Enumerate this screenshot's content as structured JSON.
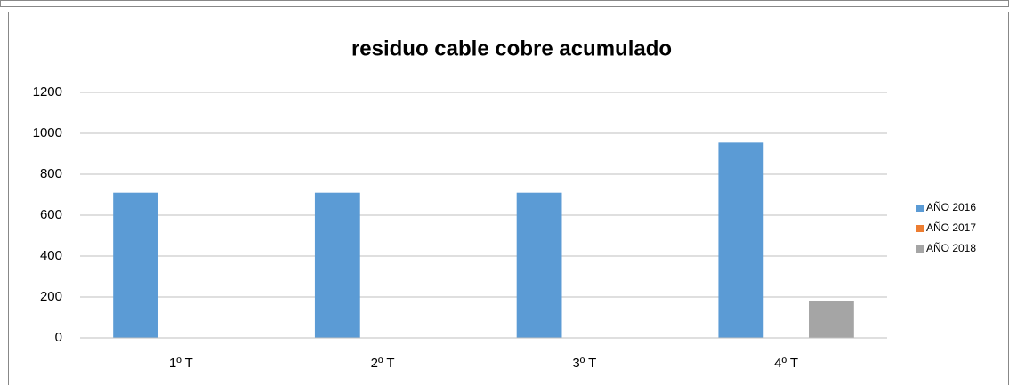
{
  "chart_data": {
    "type": "bar",
    "title": "residuo cable cobre acumulado",
    "categories": [
      "1º T",
      "2º T",
      "3º T",
      "4º T"
    ],
    "series": [
      {
        "name": "AÑO 2016",
        "color": "#5b9bd5",
        "values": [
          710,
          710,
          710,
          955
        ]
      },
      {
        "name": "AÑO 2017",
        "color": "#ed7d31",
        "values": [
          0,
          0,
          0,
          0
        ]
      },
      {
        "name": "AÑO 2018",
        "color": "#a5a5a5",
        "values": [
          0,
          0,
          0,
          180
        ]
      }
    ],
    "ylim": [
      0,
      1200
    ],
    "yticks": [
      0,
      200,
      400,
      600,
      800,
      1000,
      1200
    ],
    "grid": true,
    "legend": "right"
  }
}
